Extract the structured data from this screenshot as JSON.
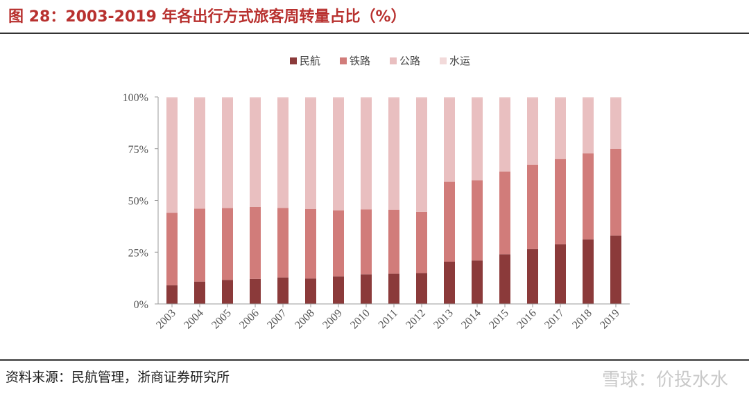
{
  "header": {
    "title": "图 28：2003-2019 年各出行方式旅客周转量占比（%）"
  },
  "footer": {
    "source": "资料来源：民航管理，浙商证券研究所",
    "watermark": "雪球：价投水水"
  },
  "chart_data": {
    "type": "bar",
    "stacked": true,
    "categories": [
      "2003",
      "2004",
      "2005",
      "2006",
      "2007",
      "2008",
      "2009",
      "2010",
      "2011",
      "2012",
      "2013",
      "2014",
      "2015",
      "2016",
      "2017",
      "2018",
      "2019"
    ],
    "series": [
      {
        "name": "民航",
        "color": "#8b3a3a",
        "values": [
          9.0,
          10.8,
          11.6,
          12.1,
          12.8,
          12.3,
          13.3,
          14.3,
          14.6,
          14.9,
          20.4,
          21.0,
          24.0,
          26.5,
          28.8,
          31.2,
          33.0
        ]
      },
      {
        "name": "铁路",
        "color": "#d17c7a",
        "values": [
          35.0,
          35.2,
          34.7,
          34.8,
          33.6,
          33.6,
          31.9,
          31.4,
          30.9,
          29.6,
          38.6,
          38.7,
          40.0,
          40.8,
          41.2,
          41.6,
          42.0
        ]
      },
      {
        "name": "公路",
        "color": "#e9bfc0",
        "values": [
          55.5,
          53.5,
          53.2,
          52.6,
          53.1,
          53.6,
          54.3,
          53.8,
          54.0,
          55.0,
          40.6,
          39.9,
          35.6,
          32.2,
          29.6,
          26.8,
          24.6
        ]
      },
      {
        "name": "水运",
        "color": "#f2dada",
        "values": [
          0.5,
          0.5,
          0.5,
          0.5,
          0.5,
          0.5,
          0.5,
          0.5,
          0.5,
          0.5,
          0.4,
          0.4,
          0.4,
          0.5,
          0.4,
          0.4,
          0.4
        ]
      }
    ],
    "yticks": [
      "0%",
      "25%",
      "50%",
      "75%",
      "100%"
    ],
    "ylim": [
      0,
      100
    ],
    "legend": "top-center",
    "grid": false
  }
}
